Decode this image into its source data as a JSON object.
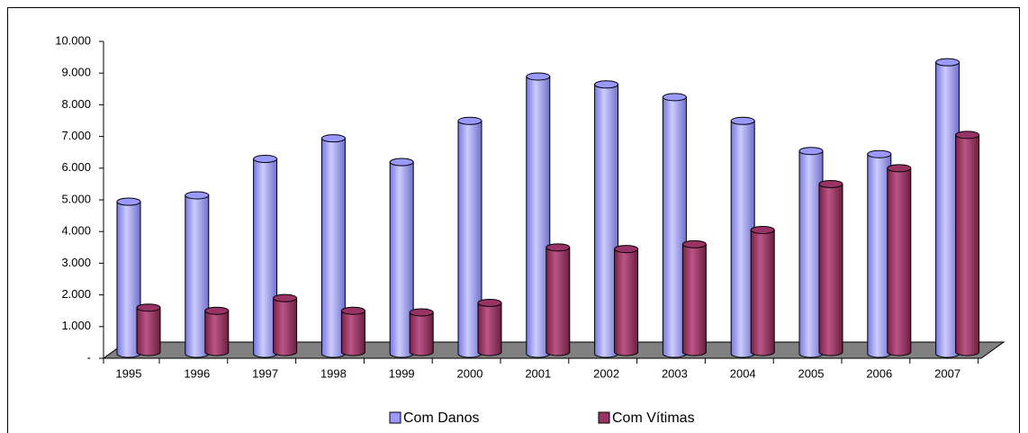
{
  "chart_data": {
    "type": "bar",
    "categories": [
      "1995",
      "1996",
      "1997",
      "1998",
      "1999",
      "2000",
      "2001",
      "2002",
      "2003",
      "2004",
      "2005",
      "2006",
      "2007"
    ],
    "series": [
      {
        "name": "Com Danos",
        "color": "#9999ff",
        "values": [
          4800,
          5000,
          6150,
          6800,
          6050,
          7350,
          8750,
          8500,
          8100,
          7350,
          6400,
          6300,
          9200
        ]
      },
      {
        "name": "Com Vítimas",
        "color": "#993366",
        "values": [
          1400,
          1300,
          1700,
          1300,
          1250,
          1550,
          3300,
          3250,
          3400,
          3850,
          5300,
          5800,
          6850
        ]
      }
    ],
    "ylim": [
      0,
      10000
    ],
    "yticks": [
      {
        "value": 0,
        "label": "-"
      },
      {
        "value": 1000,
        "label": "1.000"
      },
      {
        "value": 2000,
        "label": "2.000"
      },
      {
        "value": 3000,
        "label": "3.000"
      },
      {
        "value": 4000,
        "label": "4.000"
      },
      {
        "value": 5000,
        "label": "5.000"
      },
      {
        "value": 6000,
        "label": "6.000"
      },
      {
        "value": 7000,
        "label": "7.000"
      },
      {
        "value": 8000,
        "label": "8.000"
      },
      {
        "value": 9000,
        "label": "9.000"
      },
      {
        "value": 10000,
        "label": "10.000"
      }
    ],
    "legend": "bottom"
  }
}
